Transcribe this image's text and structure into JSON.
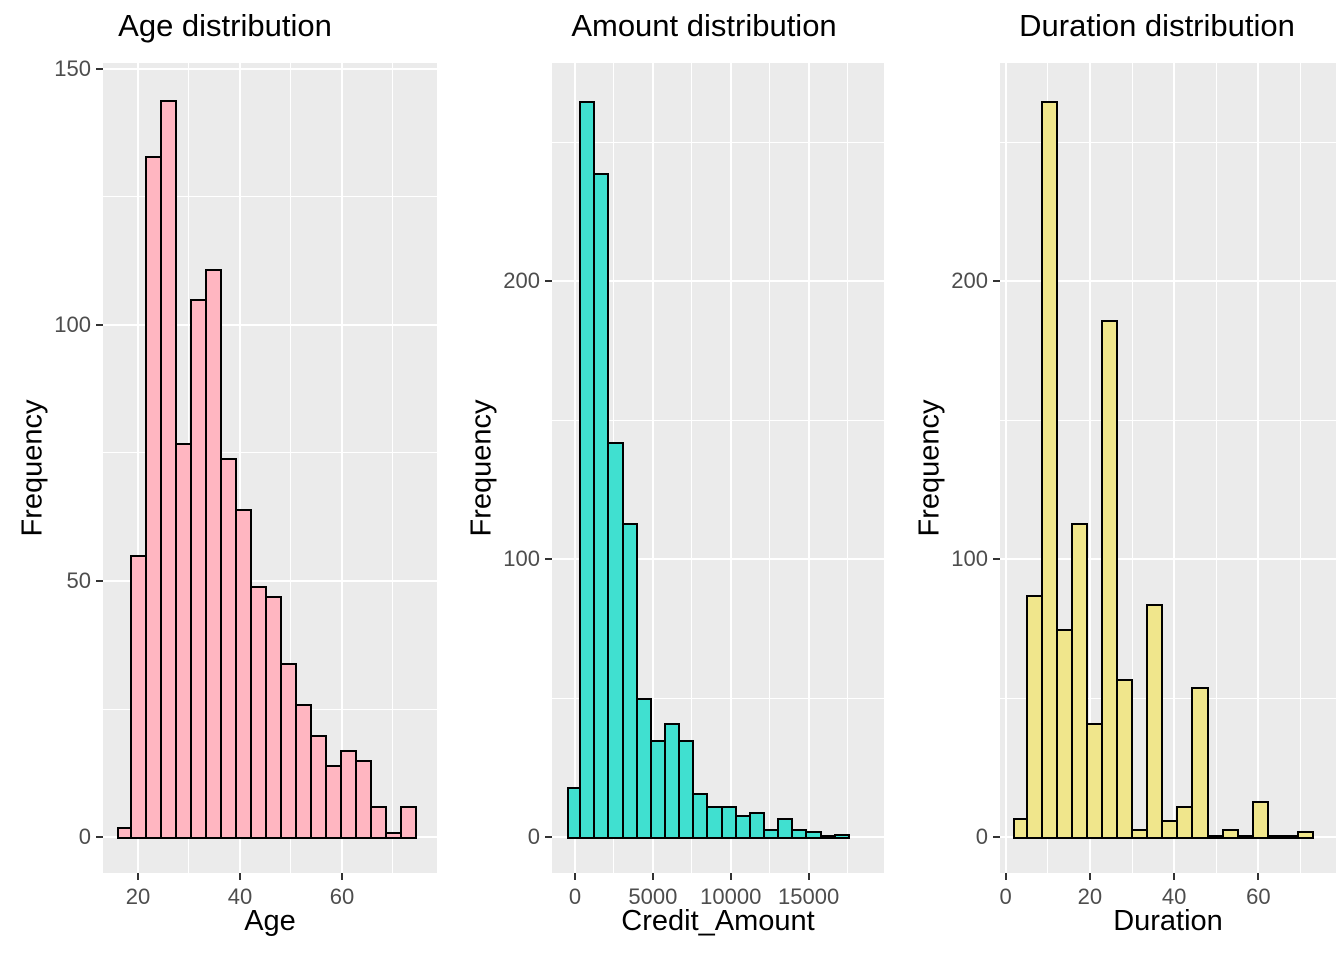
{
  "figure": {
    "background": "#FFFFFF",
    "panel_background": "#EBEBEB",
    "grid_color": "#FFFFFF",
    "tick_mark_color": "#333333",
    "tick_label_color": "#4D4D4D",
    "title_color": "#000000",
    "bar_border_color": "#000000"
  },
  "chart_data": [
    {
      "type": "bar",
      "subtype": "histogram",
      "title": "Age distribution",
      "xlabel": "Age",
      "ylabel": "Frequency",
      "bar_color": "#FFB6C1",
      "x_ticks": [
        20,
        40,
        60
      ],
      "x_minor_ticks": [
        10,
        30,
        50,
        70
      ],
      "y_ticks": [
        0,
        50,
        100,
        150
      ],
      "y_minor_ticks": [
        25,
        75,
        125
      ],
      "xlim": [
        13.14,
        78.63
      ],
      "ylim": [
        -7.03,
        151.17
      ],
      "bin_start": 15.88,
      "bin_width": 2.941,
      "values": [
        2,
        55,
        133,
        144,
        77,
        105,
        111,
        74,
        64,
        49,
        47,
        34,
        26,
        20,
        14,
        17,
        15,
        6,
        1,
        6
      ],
      "grid": true,
      "legend": false
    },
    {
      "type": "bar",
      "subtype": "histogram",
      "title": "Amount distribution",
      "xlabel": "Credit_Amount",
      "ylabel": "Frequency",
      "bar_color": "#40E0D0",
      "x_ticks": [
        0,
        5000,
        10000,
        15000
      ],
      "x_minor_ticks": [
        2500,
        7500,
        12500,
        17500
      ],
      "y_ticks": [
        0,
        100,
        200
      ],
      "y_minor_ticks": [
        50,
        150,
        250
      ],
      "xlim": [
        -1476,
        19838
      ],
      "ylim": [
        -12.96,
        278.55
      ],
      "bin_start": -520,
      "bin_width": 908.6,
      "values": [
        18,
        265,
        239,
        142,
        113,
        50,
        35,
        41,
        35,
        16,
        11,
        11,
        8,
        9,
        3,
        7,
        3,
        2,
        0,
        1
      ],
      "grid": true,
      "legend": false
    },
    {
      "type": "bar",
      "subtype": "histogram",
      "title": "Duration distribution",
      "xlabel": "Duration",
      "ylabel": "Frequency",
      "bar_color": "#F0E68C",
      "x_ticks": [
        0,
        20,
        40,
        60
      ],
      "x_minor_ticks": [
        10,
        30,
        50,
        70
      ],
      "y_ticks": [
        0,
        100,
        200
      ],
      "y_minor_ticks": [
        50,
        150,
        250
      ],
      "xlim": [
        -1.35,
        78.42
      ],
      "ylim": [
        -12.96,
        278.55
      ],
      "bin_start": 1.66,
      "bin_width": 3.577,
      "values": [
        7,
        87,
        265,
        75,
        113,
        41,
        186,
        57,
        3,
        84,
        6,
        11,
        54,
        0,
        3,
        0,
        13,
        0,
        0,
        2
      ],
      "grid": true,
      "legend": false
    }
  ]
}
